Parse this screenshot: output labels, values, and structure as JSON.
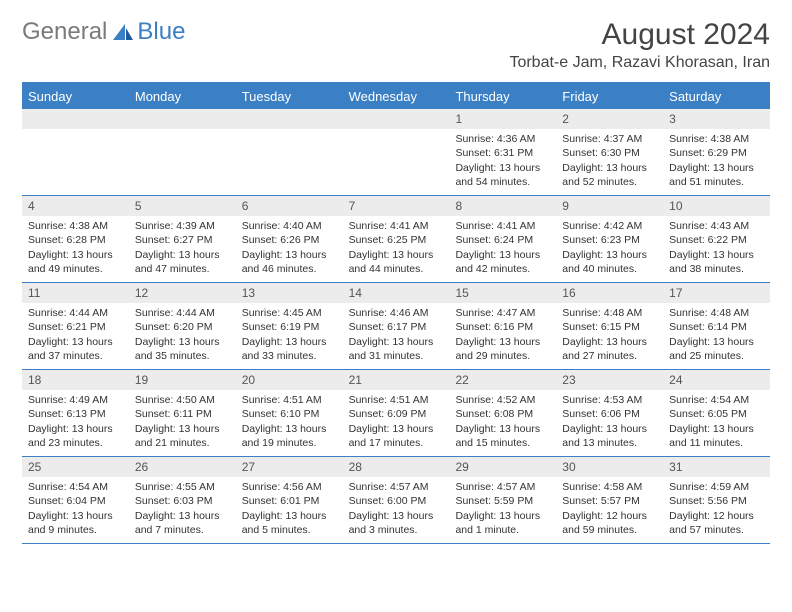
{
  "brand": {
    "general": "General",
    "blue": "Blue"
  },
  "title": "August 2024",
  "location": "Torbat-e Jam, Razavi Khorasan, Iran",
  "colors": {
    "accent": "#3b7fc4",
    "header_text": "#ffffff",
    "daynum_bg": "#ececec"
  },
  "day_names": [
    "Sunday",
    "Monday",
    "Tuesday",
    "Wednesday",
    "Thursday",
    "Friday",
    "Saturday"
  ],
  "weeks": [
    [
      {
        "num": "",
        "sunrise": "",
        "sunset": "",
        "daylight": ""
      },
      {
        "num": "",
        "sunrise": "",
        "sunset": "",
        "daylight": ""
      },
      {
        "num": "",
        "sunrise": "",
        "sunset": "",
        "daylight": ""
      },
      {
        "num": "",
        "sunrise": "",
        "sunset": "",
        "daylight": ""
      },
      {
        "num": "1",
        "sunrise": "Sunrise: 4:36 AM",
        "sunset": "Sunset: 6:31 PM",
        "daylight": "Daylight: 13 hours and 54 minutes."
      },
      {
        "num": "2",
        "sunrise": "Sunrise: 4:37 AM",
        "sunset": "Sunset: 6:30 PM",
        "daylight": "Daylight: 13 hours and 52 minutes."
      },
      {
        "num": "3",
        "sunrise": "Sunrise: 4:38 AM",
        "sunset": "Sunset: 6:29 PM",
        "daylight": "Daylight: 13 hours and 51 minutes."
      }
    ],
    [
      {
        "num": "4",
        "sunrise": "Sunrise: 4:38 AM",
        "sunset": "Sunset: 6:28 PM",
        "daylight": "Daylight: 13 hours and 49 minutes."
      },
      {
        "num": "5",
        "sunrise": "Sunrise: 4:39 AM",
        "sunset": "Sunset: 6:27 PM",
        "daylight": "Daylight: 13 hours and 47 minutes."
      },
      {
        "num": "6",
        "sunrise": "Sunrise: 4:40 AM",
        "sunset": "Sunset: 6:26 PM",
        "daylight": "Daylight: 13 hours and 46 minutes."
      },
      {
        "num": "7",
        "sunrise": "Sunrise: 4:41 AM",
        "sunset": "Sunset: 6:25 PM",
        "daylight": "Daylight: 13 hours and 44 minutes."
      },
      {
        "num": "8",
        "sunrise": "Sunrise: 4:41 AM",
        "sunset": "Sunset: 6:24 PM",
        "daylight": "Daylight: 13 hours and 42 minutes."
      },
      {
        "num": "9",
        "sunrise": "Sunrise: 4:42 AM",
        "sunset": "Sunset: 6:23 PM",
        "daylight": "Daylight: 13 hours and 40 minutes."
      },
      {
        "num": "10",
        "sunrise": "Sunrise: 4:43 AM",
        "sunset": "Sunset: 6:22 PM",
        "daylight": "Daylight: 13 hours and 38 minutes."
      }
    ],
    [
      {
        "num": "11",
        "sunrise": "Sunrise: 4:44 AM",
        "sunset": "Sunset: 6:21 PM",
        "daylight": "Daylight: 13 hours and 37 minutes."
      },
      {
        "num": "12",
        "sunrise": "Sunrise: 4:44 AM",
        "sunset": "Sunset: 6:20 PM",
        "daylight": "Daylight: 13 hours and 35 minutes."
      },
      {
        "num": "13",
        "sunrise": "Sunrise: 4:45 AM",
        "sunset": "Sunset: 6:19 PM",
        "daylight": "Daylight: 13 hours and 33 minutes."
      },
      {
        "num": "14",
        "sunrise": "Sunrise: 4:46 AM",
        "sunset": "Sunset: 6:17 PM",
        "daylight": "Daylight: 13 hours and 31 minutes."
      },
      {
        "num": "15",
        "sunrise": "Sunrise: 4:47 AM",
        "sunset": "Sunset: 6:16 PM",
        "daylight": "Daylight: 13 hours and 29 minutes."
      },
      {
        "num": "16",
        "sunrise": "Sunrise: 4:48 AM",
        "sunset": "Sunset: 6:15 PM",
        "daylight": "Daylight: 13 hours and 27 minutes."
      },
      {
        "num": "17",
        "sunrise": "Sunrise: 4:48 AM",
        "sunset": "Sunset: 6:14 PM",
        "daylight": "Daylight: 13 hours and 25 minutes."
      }
    ],
    [
      {
        "num": "18",
        "sunrise": "Sunrise: 4:49 AM",
        "sunset": "Sunset: 6:13 PM",
        "daylight": "Daylight: 13 hours and 23 minutes."
      },
      {
        "num": "19",
        "sunrise": "Sunrise: 4:50 AM",
        "sunset": "Sunset: 6:11 PM",
        "daylight": "Daylight: 13 hours and 21 minutes."
      },
      {
        "num": "20",
        "sunrise": "Sunrise: 4:51 AM",
        "sunset": "Sunset: 6:10 PM",
        "daylight": "Daylight: 13 hours and 19 minutes."
      },
      {
        "num": "21",
        "sunrise": "Sunrise: 4:51 AM",
        "sunset": "Sunset: 6:09 PM",
        "daylight": "Daylight: 13 hours and 17 minutes."
      },
      {
        "num": "22",
        "sunrise": "Sunrise: 4:52 AM",
        "sunset": "Sunset: 6:08 PM",
        "daylight": "Daylight: 13 hours and 15 minutes."
      },
      {
        "num": "23",
        "sunrise": "Sunrise: 4:53 AM",
        "sunset": "Sunset: 6:06 PM",
        "daylight": "Daylight: 13 hours and 13 minutes."
      },
      {
        "num": "24",
        "sunrise": "Sunrise: 4:54 AM",
        "sunset": "Sunset: 6:05 PM",
        "daylight": "Daylight: 13 hours and 11 minutes."
      }
    ],
    [
      {
        "num": "25",
        "sunrise": "Sunrise: 4:54 AM",
        "sunset": "Sunset: 6:04 PM",
        "daylight": "Daylight: 13 hours and 9 minutes."
      },
      {
        "num": "26",
        "sunrise": "Sunrise: 4:55 AM",
        "sunset": "Sunset: 6:03 PM",
        "daylight": "Daylight: 13 hours and 7 minutes."
      },
      {
        "num": "27",
        "sunrise": "Sunrise: 4:56 AM",
        "sunset": "Sunset: 6:01 PM",
        "daylight": "Daylight: 13 hours and 5 minutes."
      },
      {
        "num": "28",
        "sunrise": "Sunrise: 4:57 AM",
        "sunset": "Sunset: 6:00 PM",
        "daylight": "Daylight: 13 hours and 3 minutes."
      },
      {
        "num": "29",
        "sunrise": "Sunrise: 4:57 AM",
        "sunset": "Sunset: 5:59 PM",
        "daylight": "Daylight: 13 hours and 1 minute."
      },
      {
        "num": "30",
        "sunrise": "Sunrise: 4:58 AM",
        "sunset": "Sunset: 5:57 PM",
        "daylight": "Daylight: 12 hours and 59 minutes."
      },
      {
        "num": "31",
        "sunrise": "Sunrise: 4:59 AM",
        "sunset": "Sunset: 5:56 PM",
        "daylight": "Daylight: 12 hours and 57 minutes."
      }
    ]
  ]
}
